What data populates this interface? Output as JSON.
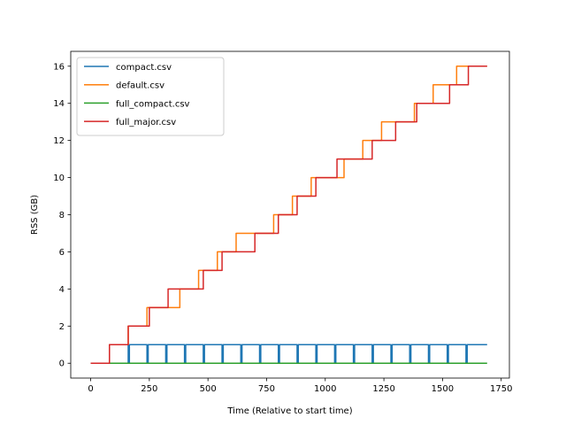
{
  "chart_data": {
    "type": "line",
    "title": "",
    "xlabel": "Time (Relative to start time)",
    "ylabel": "RSS (GB)",
    "xlim": [
      -85,
      1785
    ],
    "ylim": [
      -0.8,
      16.8
    ],
    "xticks": [
      0,
      250,
      500,
      750,
      1000,
      1250,
      1500,
      1750
    ],
    "yticks": [
      0,
      2,
      4,
      6,
      8,
      10,
      12,
      14,
      16
    ],
    "grid": false,
    "legend_position": "upper-left",
    "series": [
      {
        "name": "compact.csv",
        "color": "#1f77b4",
        "x": [
          0,
          80,
          80,
          160,
          160,
          165,
          165,
          240,
          240,
          245,
          245,
          320,
          320,
          325,
          325,
          400,
          400,
          405,
          405,
          480,
          480,
          485,
          485,
          560,
          560,
          565,
          565,
          640,
          640,
          645,
          645,
          720,
          720,
          725,
          725,
          800,
          800,
          805,
          805,
          880,
          880,
          885,
          885,
          960,
          960,
          965,
          965,
          1040,
          1040,
          1045,
          1045,
          1120,
          1120,
          1125,
          1125,
          1200,
          1200,
          1205,
          1205,
          1280,
          1280,
          1285,
          1285,
          1360,
          1360,
          1365,
          1365,
          1440,
          1440,
          1445,
          1445,
          1520,
          1520,
          1525,
          1525,
          1600,
          1600,
          1605,
          1605,
          1690
        ],
        "y": [
          0,
          0,
          1,
          1,
          0,
          0,
          1,
          1,
          0,
          0,
          1,
          1,
          0,
          0,
          1,
          1,
          0,
          0,
          1,
          1,
          0,
          0,
          1,
          1,
          0,
          0,
          1,
          1,
          0,
          0,
          1,
          1,
          0,
          0,
          1,
          1,
          0,
          0,
          1,
          1,
          0,
          0,
          1,
          1,
          0,
          0,
          1,
          1,
          0,
          0,
          1,
          1,
          0,
          0,
          1,
          1,
          0,
          0,
          1,
          1,
          0,
          0,
          1,
          1,
          0,
          0,
          1,
          1,
          0,
          0,
          1,
          1,
          0,
          0,
          1,
          1,
          0,
          0,
          1,
          1
        ]
      },
      {
        "name": "default.csv",
        "color": "#ff7f0e",
        "x": [
          0,
          80,
          80,
          160,
          160,
          240,
          240,
          380,
          380,
          460,
          460,
          540,
          540,
          620,
          620,
          780,
          780,
          860,
          860,
          940,
          940,
          1080,
          1080,
          1160,
          1160,
          1240,
          1240,
          1380,
          1380,
          1460,
          1460,
          1560,
          1560,
          1690
        ],
        "y": [
          0,
          0,
          1,
          1,
          2,
          2,
          3,
          3,
          4,
          4,
          5,
          5,
          6,
          6,
          7,
          7,
          8,
          8,
          9,
          9,
          10,
          10,
          11,
          11,
          12,
          12,
          13,
          13,
          14,
          14,
          15,
          15,
          16,
          16
        ]
      },
      {
        "name": "full_compact.csv",
        "color": "#2ca02c",
        "x": [
          0,
          1690
        ],
        "y": [
          0,
          0
        ]
      },
      {
        "name": "full_major.csv",
        "color": "#d62728",
        "x": [
          0,
          80,
          80,
          160,
          160,
          250,
          250,
          330,
          330,
          480,
          480,
          560,
          560,
          700,
          700,
          800,
          800,
          880,
          880,
          960,
          960,
          1050,
          1050,
          1200,
          1200,
          1300,
          1300,
          1390,
          1390,
          1530,
          1530,
          1610,
          1610,
          1690
        ],
        "y": [
          0,
          0,
          1,
          1,
          2,
          2,
          3,
          3,
          4,
          4,
          5,
          5,
          6,
          6,
          7,
          7,
          8,
          8,
          9,
          9,
          10,
          10,
          11,
          11,
          12,
          12,
          13,
          13,
          14,
          14,
          15,
          15,
          16,
          16
        ]
      }
    ]
  }
}
